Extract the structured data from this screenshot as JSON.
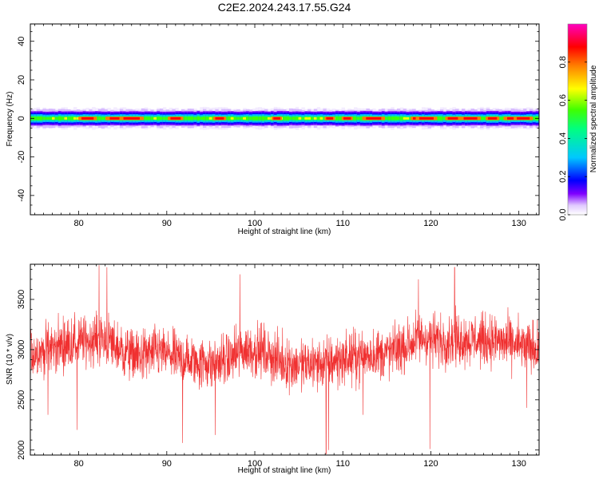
{
  "figure": {
    "title": "C2E2.2024.243.17.55.G24"
  },
  "chart_data": [
    {
      "type": "heatmap",
      "title": "C2E2.2024.243.17.55.G24",
      "xlabel": "Height of straight line (km)",
      "ylabel": "Frequency (Hz)",
      "xlim": [
        74.5,
        132.3
      ],
      "ylim": [
        -50,
        49
      ],
      "xticks": [
        80,
        90,
        100,
        110,
        120,
        130
      ],
      "yticks": [
        40,
        20,
        0,
        -20,
        -40
      ],
      "ytick_labels": [
        "40",
        "20",
        "0",
        "-20",
        "-40"
      ],
      "band_center_hz": 0,
      "band_halfwidth_hz": 3,
      "peak_heights_km": [
        81,
        84.5,
        86,
        91,
        96,
        102.5,
        108.5,
        110.5,
        113.5,
        118.5,
        119.5,
        122.5,
        124.5,
        127,
        129.5,
        130.5
      ],
      "colorbar": {
        "label": "Normalized spectral amplitude",
        "range": [
          0,
          1
        ],
        "ticks": [
          0.0,
          0.2,
          0.4,
          0.6,
          0.8
        ],
        "tick_labels": [
          "0.0",
          "0.2",
          "0.4",
          "0.6",
          "0.8"
        ],
        "colormap": [
          "#ffffff",
          "#8000ff",
          "#0000ff",
          "#00c8ff",
          "#00ff00",
          "#ffff00",
          "#ff8000",
          "#ff0000",
          "#ff00c0"
        ]
      }
    },
    {
      "type": "line",
      "xlabel": "Height of straight line (km)",
      "ylabel": "SNR (10 * v/v)",
      "xlim": [
        74.5,
        132.3
      ],
      "ylim": [
        1950,
        3850
      ],
      "xticks": [
        80,
        90,
        100,
        110,
        120,
        130
      ],
      "yticks": [
        2000,
        2500,
        3000,
        3500
      ],
      "series_color": "#f03030",
      "trend": {
        "x": [
          74.5,
          77,
          80,
          83,
          85,
          87,
          89,
          91,
          93,
          95,
          97,
          99,
          101,
          103,
          105,
          107,
          109,
          111,
          113,
          115,
          117,
          119,
          121,
          123,
          125,
          127,
          129,
          131,
          132.3
        ],
        "y": [
          2950,
          3020,
          3080,
          3100,
          2980,
          2930,
          2980,
          2920,
          2880,
          2860,
          2900,
          3000,
          2980,
          2880,
          2840,
          2860,
          2880,
          2920,
          2950,
          2960,
          3030,
          3120,
          3090,
          3100,
          3100,
          3090,
          3060,
          3020,
          3010
        ]
      },
      "spread": 230,
      "spikes": [
        {
          "x": 82.3,
          "y": 3840
        },
        {
          "x": 83.2,
          "y": 3820
        },
        {
          "x": 76.5,
          "y": 2350
        },
        {
          "x": 79.8,
          "y": 2200
        },
        {
          "x": 91.8,
          "y": 2070
        },
        {
          "x": 95.5,
          "y": 2150
        },
        {
          "x": 98.3,
          "y": 3750
        },
        {
          "x": 108.1,
          "y": 1960
        },
        {
          "x": 108.4,
          "y": 2000
        },
        {
          "x": 112.3,
          "y": 2350
        },
        {
          "x": 118.6,
          "y": 3700
        },
        {
          "x": 119.9,
          "y": 2010
        },
        {
          "x": 122.7,
          "y": 3820
        },
        {
          "x": 130.9,
          "y": 2420
        }
      ],
      "n_points": 2400
    }
  ]
}
